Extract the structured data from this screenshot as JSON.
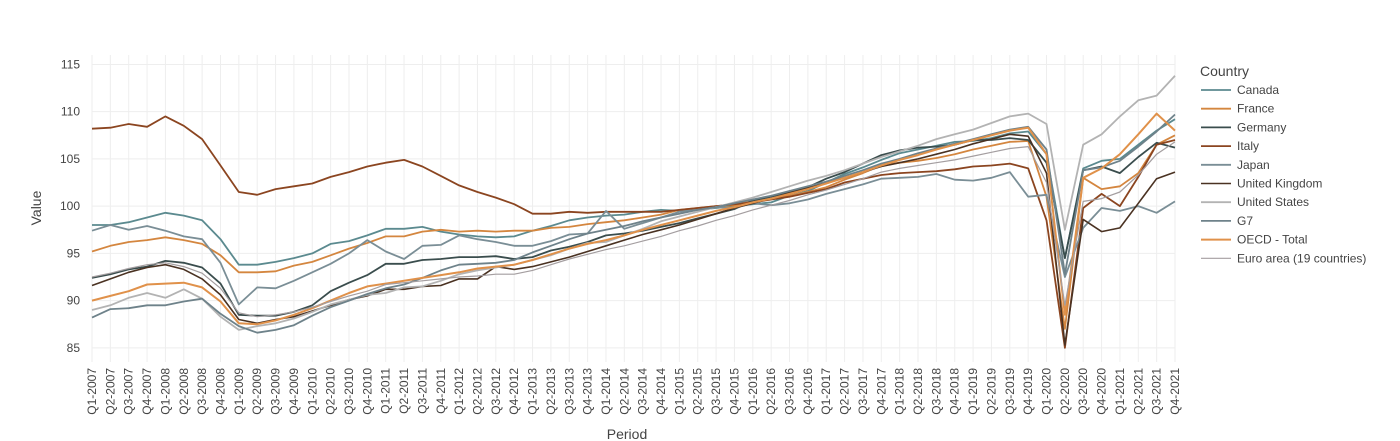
{
  "chart_data": {
    "type": "line",
    "xlabel": "Period",
    "ylabel": "Value",
    "ylim": [
      83.5,
      116
    ],
    "yticks": [
      85,
      90,
      95,
      100,
      105,
      110,
      115
    ],
    "grid": true,
    "legend_title": "Country",
    "legend_position": "right",
    "x": [
      "Q1-2007",
      "Q2-2007",
      "Q3-2007",
      "Q4-2007",
      "Q1-2008",
      "Q2-2008",
      "Q3-2008",
      "Q4-2008",
      "Q1-2009",
      "Q2-2009",
      "Q3-2009",
      "Q4-2009",
      "Q1-2010",
      "Q2-2010",
      "Q3-2010",
      "Q4-2010",
      "Q1-2011",
      "Q2-2011",
      "Q3-2011",
      "Q4-2011",
      "Q1-2012",
      "Q2-2012",
      "Q3-2012",
      "Q4-2012",
      "Q1-2013",
      "Q2-2013",
      "Q3-2013",
      "Q4-2013",
      "Q1-2014",
      "Q2-2014",
      "Q3-2014",
      "Q4-2014",
      "Q1-2015",
      "Q2-2015",
      "Q3-2015",
      "Q4-2015",
      "Q1-2016",
      "Q2-2016",
      "Q3-2016",
      "Q4-2016",
      "Q1-2017",
      "Q2-2017",
      "Q3-2017",
      "Q4-2017",
      "Q1-2018",
      "Q2-2018",
      "Q3-2018",
      "Q4-2018",
      "Q1-2019",
      "Q2-2019",
      "Q3-2019",
      "Q4-2019",
      "Q1-2020",
      "Q2-2020",
      "Q3-2020",
      "Q4-2020",
      "Q1-2021",
      "Q2-2021",
      "Q3-2021",
      "Q4-2021"
    ],
    "series": [
      {
        "name": "Canada",
        "color": "#5b8a8f",
        "width": 1.8,
        "values": [
          98.0,
          98.0,
          98.3,
          98.8,
          99.3,
          99.0,
          98.5,
          96.5,
          93.8,
          93.8,
          94.1,
          94.5,
          95.0,
          96.0,
          96.3,
          96.9,
          97.6,
          97.6,
          97.8,
          97.3,
          97.0,
          96.8,
          96.7,
          96.8,
          97.4,
          97.9,
          98.5,
          98.8,
          99.0,
          99.1,
          99.4,
          99.6,
          99.5,
          99.6,
          99.8,
          100.0,
          100.2,
          100.4,
          101.1,
          101.6,
          102.5,
          103.4,
          104.1,
          104.9,
          105.6,
          106.0,
          106.4,
          106.8,
          106.9,
          107.2,
          107.7,
          107.9,
          105.5,
          94.5,
          104.0,
          104.8,
          105.0,
          106.5,
          108.0,
          109.2
        ]
      },
      {
        "name": "France",
        "color": "#d4863f",
        "width": 1.8,
        "values": [
          95.2,
          95.8,
          96.2,
          96.4,
          96.7,
          96.4,
          96.0,
          94.8,
          93.0,
          93.0,
          93.1,
          93.7,
          94.1,
          94.8,
          95.5,
          96.1,
          96.8,
          96.8,
          97.3,
          97.5,
          97.3,
          97.4,
          97.3,
          97.4,
          97.4,
          97.7,
          97.8,
          98.1,
          98.3,
          98.5,
          98.8,
          99.1,
          99.6,
          99.8,
          100.0,
          100.1,
          100.6,
          100.8,
          101.1,
          101.5,
          102.0,
          102.8,
          103.5,
          104.3,
          104.6,
          104.8,
          105.1,
          105.5,
          106.0,
          106.4,
          106.8,
          106.9,
          101.0,
          87.0,
          103.0,
          101.8,
          102.1,
          103.5,
          106.5,
          107.5
        ]
      },
      {
        "name": "Germany",
        "color": "#3a4d4d",
        "width": 1.8,
        "values": [
          92.4,
          92.8,
          93.3,
          93.6,
          94.2,
          94.0,
          93.5,
          91.8,
          88.5,
          88.4,
          88.4,
          88.8,
          89.5,
          91.0,
          91.9,
          92.7,
          93.9,
          93.9,
          94.3,
          94.4,
          94.6,
          94.6,
          94.7,
          94.4,
          94.6,
          95.3,
          95.7,
          96.2,
          96.9,
          97.1,
          97.4,
          97.8,
          98.2,
          98.7,
          99.2,
          99.7,
          100.6,
          101.0,
          101.5,
          102.0,
          102.9,
          103.6,
          104.5,
          105.4,
          105.9,
          106.2,
          106.3,
          106.5,
          107.0,
          107.0,
          107.2,
          107.0,
          104.6,
          94.5,
          103.8,
          104.2,
          103.5,
          105.2,
          106.7,
          106.2
        ]
      },
      {
        "name": "Italy",
        "color": "#8b4520",
        "width": 1.8,
        "values": [
          108.2,
          108.3,
          108.7,
          108.4,
          109.5,
          108.5,
          107.1,
          104.3,
          101.5,
          101.2,
          101.8,
          102.1,
          102.4,
          103.1,
          103.6,
          104.2,
          104.6,
          104.9,
          104.2,
          103.2,
          102.2,
          101.5,
          100.9,
          100.2,
          99.2,
          99.2,
          99.4,
          99.3,
          99.4,
          99.4,
          99.4,
          99.4,
          99.6,
          99.8,
          100.0,
          100.2,
          100.4,
          100.7,
          101.0,
          101.4,
          101.8,
          102.5,
          102.9,
          103.3,
          103.5,
          103.6,
          103.7,
          103.9,
          104.2,
          104.3,
          104.5,
          104.0,
          98.5,
          85.0,
          99.8,
          101.3,
          100.0,
          103.1,
          106.5,
          107.0
        ]
      },
      {
        "name": "Japan",
        "color": "#7a8e96",
        "width": 1.8,
        "values": [
          97.4,
          98.0,
          97.5,
          97.9,
          97.4,
          96.8,
          96.5,
          94.0,
          89.6,
          91.4,
          91.3,
          92.1,
          93.0,
          93.9,
          95.0,
          96.4,
          95.2,
          94.4,
          95.8,
          95.9,
          96.9,
          96.5,
          96.2,
          95.8,
          95.8,
          96.3,
          97.0,
          97.1,
          99.5,
          97.6,
          98.2,
          98.8,
          99.4,
          99.6,
          99.9,
          99.8,
          100.3,
          100.1,
          100.3,
          100.7,
          101.3,
          101.8,
          102.3,
          102.9,
          103.0,
          103.1,
          103.4,
          102.8,
          102.7,
          103.0,
          103.6,
          101.0,
          101.2,
          92.5,
          97.7,
          99.8,
          99.5,
          100.0,
          99.3,
          100.5
        ]
      },
      {
        "name": "United Kingdom",
        "color": "#4a3222",
        "width": 1.6,
        "values": [
          91.6,
          92.3,
          93.0,
          93.5,
          93.8,
          93.3,
          92.3,
          90.6,
          88.0,
          87.6,
          88.0,
          88.3,
          88.9,
          89.5,
          90.1,
          90.5,
          91.2,
          91.2,
          91.5,
          91.6,
          92.3,
          92.3,
          93.6,
          93.3,
          93.6,
          94.1,
          94.6,
          95.2,
          95.8,
          96.4,
          97.0,
          97.5,
          98.0,
          98.6,
          99.2,
          99.8,
          100.3,
          100.8,
          101.4,
          101.9,
          102.5,
          103.0,
          103.6,
          104.2,
          104.6,
          105.0,
          105.5,
          106.0,
          106.6,
          107.1,
          107.6,
          107.4,
          103.5,
          85.3,
          98.6,
          97.3,
          97.7,
          100.3,
          102.9,
          103.6
        ]
      },
      {
        "name": "United States",
        "color": "#b3b3b3",
        "width": 1.8,
        "values": [
          89.0,
          89.5,
          90.3,
          90.8,
          90.3,
          91.2,
          90.2,
          88.3,
          86.9,
          87.3,
          87.6,
          88.1,
          88.8,
          89.6,
          90.1,
          90.6,
          90.8,
          91.4,
          91.5,
          92.1,
          92.8,
          93.2,
          93.5,
          93.8,
          94.3,
          94.8,
          95.5,
          96.1,
          96.2,
          96.9,
          97.6,
          98.4,
          98.9,
          99.4,
          99.9,
          100.4,
          100.9,
          101.5,
          102.1,
          102.7,
          103.2,
          103.8,
          104.5,
          105.2,
          105.8,
          106.4,
          107.1,
          107.6,
          108.1,
          108.8,
          109.5,
          109.8,
          108.7,
          97.5,
          106.5,
          107.6,
          109.5,
          111.2,
          111.7,
          113.8
        ]
      },
      {
        "name": "G7",
        "color": "#6e828a",
        "width": 1.8,
        "values": [
          88.2,
          89.1,
          89.2,
          89.5,
          89.5,
          89.9,
          90.2,
          88.6,
          87.3,
          86.6,
          86.9,
          87.4,
          88.4,
          89.3,
          90.0,
          90.7,
          91.3,
          91.7,
          92.4,
          93.2,
          93.8,
          93.9,
          94.0,
          94.3,
          95.1,
          95.8,
          96.5,
          97.1,
          97.5,
          97.9,
          98.4,
          98.8,
          99.2,
          99.6,
          99.9,
          100.3,
          100.7,
          101.1,
          101.6,
          102.1,
          102.6,
          103.2,
          103.8,
          104.5,
          105.0,
          105.6,
          106.1,
          106.6,
          107.1,
          107.6,
          108.1,
          108.4,
          106.0,
          92.8,
          103.8,
          104.1,
          104.8,
          106.3,
          107.9,
          109.7
        ]
      },
      {
        "name": "OECD - Total",
        "color": "#e0914a",
        "width": 2.0,
        "values": [
          90.0,
          90.5,
          91.0,
          91.7,
          91.8,
          91.9,
          91.4,
          89.9,
          87.6,
          87.5,
          87.9,
          88.5,
          89.2,
          90.0,
          90.8,
          91.5,
          91.8,
          92.1,
          92.4,
          92.7,
          93.0,
          93.4,
          93.6,
          93.8,
          94.3,
          94.9,
          95.5,
          96.0,
          96.4,
          96.9,
          97.5,
          98.0,
          98.5,
          99.0,
          99.5,
          99.9,
          100.4,
          100.8,
          101.3,
          101.8,
          102.4,
          103.0,
          103.6,
          104.3,
          104.9,
          105.4,
          106.0,
          106.5,
          107.0,
          107.5,
          108.0,
          108.3,
          105.5,
          88.5,
          103.0,
          104.0,
          105.5,
          107.6,
          109.8,
          108.0
        ]
      },
      {
        "name": "Euro area (19 countries)",
        "color": "#a49ea0",
        "width": 1.2,
        "values": [
          92.5,
          92.9,
          93.4,
          93.8,
          94.0,
          93.6,
          92.9,
          91.3,
          88.7,
          88.3,
          88.5,
          88.8,
          89.3,
          89.9,
          90.5,
          91.0,
          91.7,
          91.9,
          92.1,
          92.3,
          92.5,
          92.6,
          92.8,
          92.8,
          93.2,
          93.8,
          94.4,
          94.9,
          95.4,
          95.8,
          96.3,
          96.8,
          97.4,
          97.9,
          98.5,
          99.0,
          99.6,
          100.1,
          100.6,
          101.2,
          101.7,
          102.3,
          102.9,
          103.6,
          104.0,
          104.3,
          104.6,
          104.9,
          105.3,
          105.7,
          106.1,
          106.3,
          102.5,
          89.5,
          100.5,
          100.8,
          101.5,
          103.3,
          105.5,
          106.8
        ]
      }
    ]
  }
}
